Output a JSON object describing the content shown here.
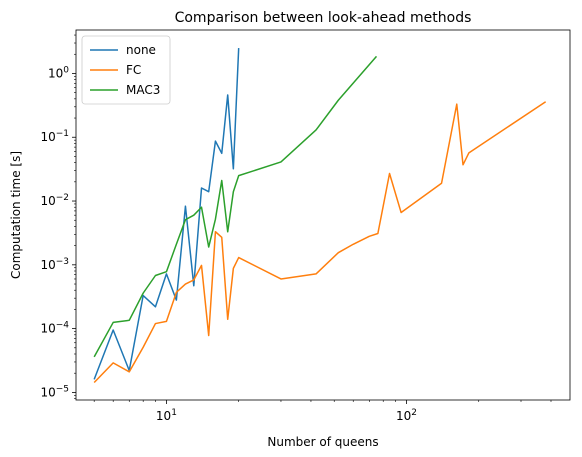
{
  "chart_data": {
    "type": "line",
    "title": "Comparison between look-ahead methods",
    "xlabel": "Number of queens",
    "ylabel": "Computation time [s]",
    "xscale": "log",
    "yscale": "log",
    "xlim": [
      4.2,
      480
    ],
    "ylim": [
      7.6e-06,
      4.8
    ],
    "grid": false,
    "legend_position": "top-left",
    "x_ticks": [
      {
        "value": 10,
        "label": "10",
        "exp": "1"
      },
      {
        "value": 100,
        "label": "10",
        "exp": "2"
      }
    ],
    "y_ticks": [
      {
        "value": 1e-05,
        "label": "10",
        "exp": "−5"
      },
      {
        "value": 0.0001,
        "label": "10",
        "exp": "−4"
      },
      {
        "value": 0.001,
        "label": "10",
        "exp": "−3"
      },
      {
        "value": 0.01,
        "label": "10",
        "exp": "−2"
      },
      {
        "value": 0.1,
        "label": "10",
        "exp": "−1"
      },
      {
        "value": 1,
        "label": "10",
        "exp": "0"
      }
    ],
    "series": [
      {
        "name": "none",
        "color": "#1f77b4",
        "x": [
          5,
          6,
          7,
          8,
          9,
          10,
          11,
          12,
          13,
          14,
          15,
          16,
          17,
          18,
          19,
          20
        ],
        "y": [
          1.6e-05,
          9.5e-05,
          2.2e-05,
          0.00033,
          0.00022,
          0.00072,
          0.00028,
          0.0083,
          0.00047,
          0.016,
          0.014,
          0.087,
          0.056,
          0.46,
          0.032,
          2.5
        ]
      },
      {
        "name": "FC",
        "color": "#ff7f0e",
        "x": [
          5,
          6,
          7,
          8,
          9,
          10,
          11,
          12,
          13,
          14,
          15,
          16,
          17,
          18,
          19,
          20,
          30,
          42,
          52,
          60,
          70,
          76,
          85,
          95,
          140,
          162,
          172,
          182,
          380
        ],
        "y": [
          1.43e-05,
          2.9e-05,
          2.1e-05,
          5.1e-05,
          0.00012,
          0.00013,
          0.00037,
          0.0005,
          0.00058,
          0.00098,
          7.8e-05,
          0.0033,
          0.0027,
          0.00014,
          0.00088,
          0.0013,
          0.0006,
          0.00072,
          0.00155,
          0.0021,
          0.0028,
          0.0031,
          0.027,
          0.0066,
          0.019,
          0.33,
          0.037,
          0.057,
          0.36
        ]
      },
      {
        "name": "MAC3",
        "color": "#2ca02c",
        "x": [
          5,
          6,
          7,
          8,
          9,
          10,
          11,
          12,
          13,
          14,
          15,
          16,
          17,
          18,
          19,
          20,
          30,
          42,
          52,
          75
        ],
        "y": [
          3.6e-05,
          0.000125,
          0.000135,
          0.00036,
          0.00068,
          0.00078,
          0.0021,
          0.0051,
          0.006,
          0.008,
          0.0019,
          0.0052,
          0.021,
          0.0033,
          0.014,
          0.025,
          0.041,
          0.13,
          0.38,
          1.85
        ]
      }
    ]
  }
}
